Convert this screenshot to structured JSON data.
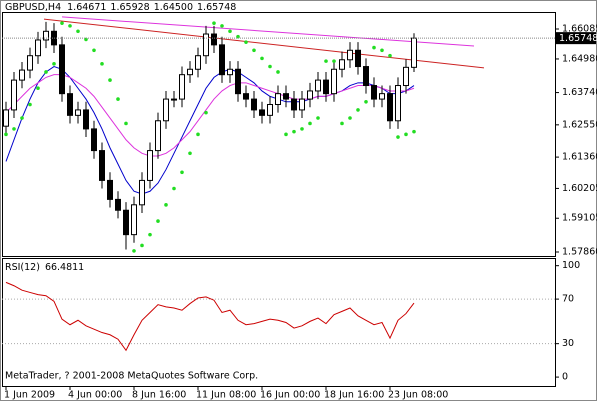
{
  "chart_data": [
    {
      "type": "candlestick",
      "title": "GBPUSD,H4",
      "ohlc_labels": [
        "1.64671",
        "1.65928",
        "1.64500",
        "1.65748"
      ],
      "open": [
        1.625,
        1.631,
        1.642,
        1.6457,
        1.651,
        1.6568,
        1.66,
        1.655,
        1.637,
        1.629,
        1.631,
        1.624,
        1.616,
        1.605,
        1.598,
        1.594,
        1.585,
        1.596,
        1.605,
        1.616,
        1.627,
        1.635,
        1.635,
        1.644,
        1.646,
        1.651,
        1.659,
        1.655,
        1.644,
        1.646,
        1.637,
        1.635,
        1.631,
        1.629,
        1.633,
        1.637,
        1.635,
        1.631,
        1.635,
        1.638,
        1.642,
        1.637,
        1.646,
        1.6495,
        1.653,
        1.647,
        1.64,
        1.635,
        1.637,
        1.627,
        1.64,
        1.64671
      ],
      "high": [
        1.634,
        1.645,
        1.6487,
        1.654,
        1.6598,
        1.6635,
        1.663,
        1.658,
        1.64,
        1.634,
        1.634,
        1.627,
        1.619,
        1.608,
        1.601,
        1.597,
        1.599,
        1.608,
        1.619,
        1.63,
        1.638,
        1.638,
        1.647,
        1.649,
        1.654,
        1.662,
        1.662,
        1.658,
        1.649,
        1.649,
        1.64,
        1.638,
        1.634,
        1.636,
        1.64,
        1.64,
        1.638,
        1.638,
        1.641,
        1.645,
        1.645,
        1.649,
        1.6525,
        1.656,
        1.656,
        1.65,
        1.643,
        1.64,
        1.64,
        1.643,
        1.6497,
        1.65928
      ],
      "low": [
        1.622,
        1.628,
        1.639,
        1.6427,
        1.648,
        1.6538,
        1.652,
        1.634,
        1.626,
        1.626,
        1.621,
        1.613,
        1.602,
        1.595,
        1.591,
        1.5795,
        1.582,
        1.593,
        1.602,
        1.613,
        1.624,
        1.632,
        1.632,
        1.641,
        1.643,
        1.648,
        1.652,
        1.641,
        1.641,
        1.634,
        1.632,
        1.628,
        1.626,
        1.626,
        1.63,
        1.632,
        1.628,
        1.628,
        1.632,
        1.635,
        1.634,
        1.634,
        1.643,
        1.6465,
        1.644,
        1.637,
        1.632,
        1.632,
        1.624,
        1.624,
        1.637,
        1.645
      ],
      "close": [
        1.631,
        1.642,
        1.6457,
        1.651,
        1.6568,
        1.66,
        1.655,
        1.637,
        1.629,
        1.631,
        1.624,
        1.616,
        1.605,
        1.598,
        1.594,
        1.585,
        1.596,
        1.605,
        1.616,
        1.627,
        1.635,
        1.635,
        1.644,
        1.646,
        1.651,
        1.659,
        1.655,
        1.644,
        1.646,
        1.637,
        1.635,
        1.631,
        1.629,
        1.633,
        1.637,
        1.635,
        1.631,
        1.635,
        1.638,
        1.642,
        1.637,
        1.646,
        1.6495,
        1.653,
        1.647,
        1.64,
        1.635,
        1.637,
        1.627,
        1.64,
        1.64671,
        1.65748
      ],
      "overlays": [
        {
          "color": "#0000cc",
          "values": [
            1.612,
            1.62,
            1.628,
            1.635,
            1.641,
            1.645,
            1.647,
            1.646,
            1.643,
            1.639,
            1.635,
            1.63,
            1.624,
            1.617,
            1.611,
            1.605,
            1.601,
            1.6,
            1.601,
            1.604,
            1.609,
            1.615,
            1.621,
            1.627,
            1.633,
            1.639,
            1.643,
            1.645,
            1.646,
            1.645,
            1.643,
            1.641,
            1.638,
            1.636,
            1.635,
            1.634,
            1.634,
            1.634,
            1.635,
            1.636,
            1.636,
            1.637,
            1.638,
            1.64,
            1.641,
            1.641,
            1.64,
            1.639,
            1.637,
            1.637,
            1.638,
            1.64
          ]
        },
        {
          "color": "#dd33dd",
          "values": [
            1.63,
            1.633,
            1.636,
            1.639,
            1.641,
            1.643,
            1.644,
            1.644,
            1.643,
            1.641,
            1.639,
            1.636,
            1.632,
            1.628,
            1.624,
            1.62,
            1.617,
            1.615,
            1.614,
            1.614,
            1.615,
            1.617,
            1.62,
            1.623,
            1.627,
            1.631,
            1.635,
            1.638,
            1.64,
            1.641,
            1.641,
            1.64,
            1.639,
            1.638,
            1.637,
            1.636,
            1.635,
            1.635,
            1.635,
            1.636,
            1.636,
            1.637,
            1.638,
            1.639,
            1.64,
            1.64,
            1.64,
            1.639,
            1.638,
            1.638,
            1.638,
            1.639
          ]
        }
      ],
      "sar": {
        "color": "#22dd22",
        "values": [
          1.622,
          1.624,
          1.628,
          1.633,
          1.639,
          1.645,
          1.648,
          1.663,
          1.662,
          1.66,
          1.657,
          1.653,
          1.648,
          1.642,
          1.635,
          1.626,
          1.579,
          1.581,
          1.585,
          1.59,
          1.596,
          1.602,
          1.608,
          1.615,
          1.622,
          1.63,
          1.663,
          1.662,
          1.66,
          1.658,
          1.656,
          1.653,
          1.65,
          1.647,
          1.645,
          1.622,
          1.623,
          1.624,
          1.626,
          1.628,
          1.649,
          1.649,
          1.626,
          1.628,
          1.631,
          1.634,
          1.654,
          1.653,
          1.651,
          1.621,
          1.622,
          1.623
        ]
      },
      "trendlines": [
        {
          "color": "#cc2222",
          "x": [
            4.75,
            59.75
          ],
          "values": [
            1.6645,
            1.6465
          ]
        },
        {
          "color": "#dd33dd",
          "x": [
            7,
            58.5
          ],
          "values": [
            1.6653,
            1.6546
          ]
        }
      ],
      "ylim": [
        1.57712,
        1.66712
      ],
      "yticks": [
        1.66085,
        {
          "value": 1.6498,
          "label": "1.64980"
        },
        {
          "value": 1.6374,
          "label": "1.63740"
        },
        {
          "value": 1.6255,
          "label": "1.62550"
        },
        {
          "value": 1.6136,
          "label": "1.61360"
        },
        1.60205,
        1.59105,
        {
          "value": 1.5786,
          "label": "1.57860"
        }
      ]
    },
    {
      "type": "line",
      "title": "RSI(12)",
      "annotation": "MetaTrader, ? 2001-2008 MetaQuotes Software Corp.",
      "categories": [
        "1 Jun 2009",
        null,
        null,
        null,
        null,
        null,
        null,
        null,
        "4 Jun 00:00",
        null,
        null,
        null,
        null,
        null,
        null,
        null,
        "8 Jun 16:00",
        null,
        null,
        null,
        null,
        null,
        null,
        null,
        "11 Jun 08:00",
        null,
        null,
        null,
        null,
        null,
        null,
        null,
        "16 Jun 00:00",
        null,
        null,
        null,
        null,
        null,
        null,
        null,
        "18 Jun 16:00",
        null,
        null,
        null,
        null,
        null,
        null,
        null,
        "23 Jun 08:00",
        null,
        null,
        null
      ],
      "series": [
        {
          "color": "#cc0000",
          "values": [
            85,
            82,
            78,
            76,
            74,
            73,
            68,
            52,
            47,
            51,
            46,
            43,
            40,
            38,
            34,
            24,
            38,
            51,
            58,
            65,
            63,
            62,
            60,
            66,
            71,
            72,
            69,
            58,
            60,
            51,
            47,
            48,
            50,
            52,
            51,
            49,
            44,
            46,
            50,
            53,
            48,
            56,
            59,
            62,
            55,
            51,
            47,
            49,
            35,
            51,
            57,
            66.4811
          ]
        }
      ],
      "ylim": [
        -8,
        106
      ],
      "yticks": [
        0,
        30,
        70,
        100
      ],
      "levels": [
        30,
        70
      ]
    }
  ]
}
